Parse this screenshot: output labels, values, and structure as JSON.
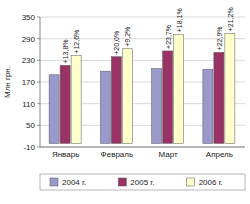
{
  "chart_data": {
    "type": "bar",
    "y_label": "Млн грн.",
    "categories": [
      "Январь",
      "Февраль",
      "Март",
      "Апрель"
    ],
    "series": [
      {
        "name": "2004 г.",
        "color": "#9999cc",
        "values": [
          190,
          200,
          207,
          205
        ]
      },
      {
        "name": "2005 г.",
        "color": "#993366",
        "values": [
          216,
          240,
          256,
          252
        ],
        "annotations": [
          "+13,8%",
          "+20,0%",
          "+23,7%",
          "+22,9%"
        ]
      },
      {
        "name": "2006 г.",
        "color": "#ffffcc",
        "values": [
          243,
          262,
          302,
          305
        ],
        "annotations": [
          "+12,6%",
          "+9,2%",
          "+18,1%",
          "+21,2%"
        ]
      }
    ],
    "ylim": [
      -10,
      350
    ],
    "yticks": [
      -10,
      50,
      110,
      170,
      230,
      290,
      350
    ],
    "grid": true,
    "legend": "bottom"
  }
}
